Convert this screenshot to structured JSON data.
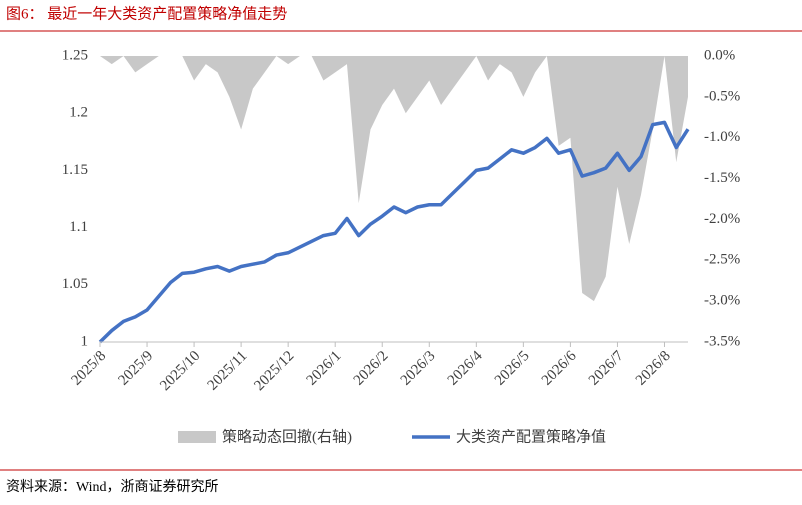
{
  "title": "图6：  最近一年大类资产配置策略净值走势",
  "source": "资料来源：Wind，浙商证券研究所",
  "chart_data": {
    "type": "combo",
    "categories": [
      "2025/8",
      null,
      null,
      null,
      "2025/9",
      null,
      null,
      null,
      "2025/10",
      null,
      null,
      null,
      "2025/11",
      null,
      null,
      null,
      "2025/12",
      null,
      null,
      null,
      "2026/1",
      null,
      null,
      null,
      "2026/2",
      null,
      null,
      null,
      "2026/3",
      null,
      null,
      null,
      "2026/4",
      null,
      null,
      null,
      "2026/5",
      null,
      null,
      null,
      "2026/6",
      null,
      null,
      null,
      "2026/7",
      null,
      null,
      null,
      "2026/8",
      null,
      null
    ],
    "series": [
      {
        "name": "策略动态回撤(右轴)",
        "chart_type": "area",
        "axis": "y2",
        "color": "#c8c8c8",
        "values": [
          0,
          -0.1,
          0,
          -0.2,
          -0.1,
          0,
          0,
          0,
          -0.3,
          -0.1,
          -0.2,
          -0.5,
          -0.9,
          -0.4,
          -0.2,
          0,
          -0.1,
          0,
          0,
          -0.3,
          -0.2,
          -0.1,
          -1.8,
          -0.9,
          -0.6,
          -0.4,
          -0.7,
          -0.5,
          -0.3,
          -0.6,
          -0.4,
          -0.2,
          0,
          -0.3,
          -0.1,
          -0.2,
          -0.5,
          -0.2,
          0,
          -1.1,
          -1.0,
          -2.9,
          -3.0,
          -2.7,
          -1.6,
          -2.3,
          -1.7,
          -0.9,
          0,
          -1.3,
          -0.5
        ]
      },
      {
        "name": "大类资产配置策略净值",
        "chart_type": "line",
        "color": "#4472c4",
        "values": [
          1.0,
          1.01,
          1.018,
          1.022,
          1.028,
          1.04,
          1.052,
          1.06,
          1.061,
          1.064,
          1.066,
          1.062,
          1.066,
          1.068,
          1.07,
          1.076,
          1.078,
          1.083,
          1.088,
          1.093,
          1.095,
          1.108,
          1.093,
          1.103,
          1.11,
          1.118,
          1.113,
          1.118,
          1.12,
          1.12,
          1.13,
          1.14,
          1.15,
          1.152,
          1.16,
          1.168,
          1.165,
          1.17,
          1.178,
          1.165,
          1.168,
          1.145,
          1.148,
          1.152,
          1.165,
          1.15,
          1.162,
          1.19,
          1.192,
          1.17,
          1.186
        ]
      }
    ],
    "ylim": [
      1,
      1.25
    ],
    "yticks": [
      1,
      1.05,
      1.1,
      1.15,
      1.2,
      1.25
    ],
    "y2lim": [
      -3.5,
      0
    ],
    "y2ticks": [
      {
        "value": 0,
        "label": "0.0%"
      },
      {
        "value": -0.5,
        "label": "-0.5%"
      },
      {
        "value": -1,
        "label": "-1.0%"
      },
      {
        "value": -1.5,
        "label": "-1.5%"
      },
      {
        "value": -2,
        "label": "-2.0%"
      },
      {
        "value": -2.5,
        "label": "-2.5%"
      },
      {
        "value": -3,
        "label": "-3.0%"
      },
      {
        "value": -3.5,
        "label": "-3.5%"
      }
    ],
    "legend": "bottom"
  }
}
